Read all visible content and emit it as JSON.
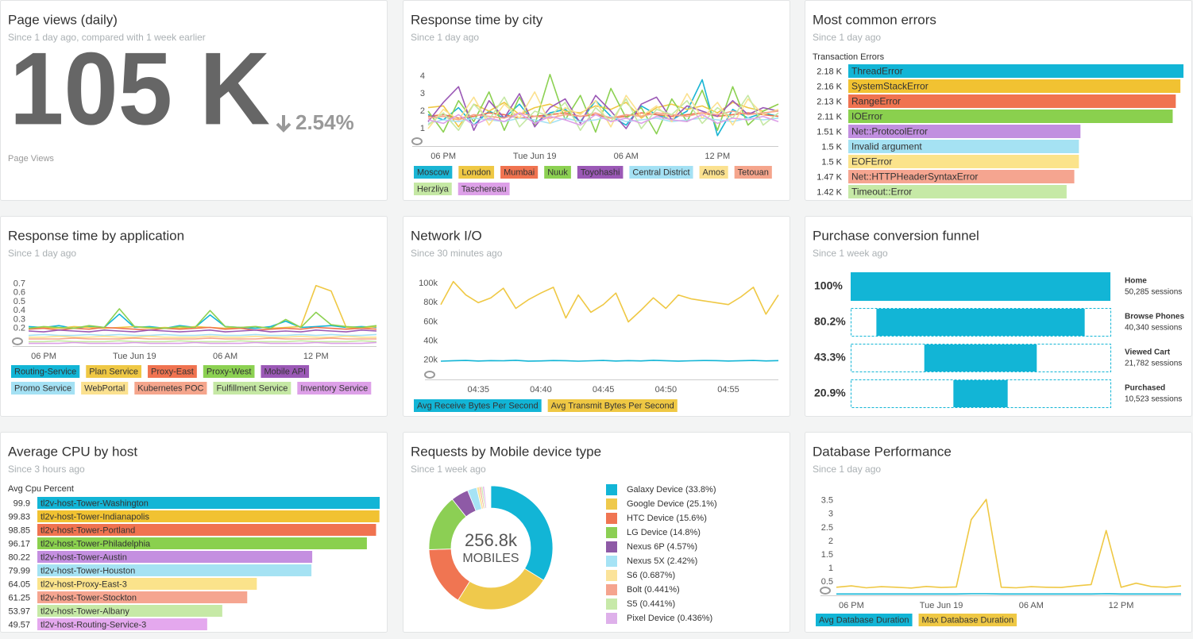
{
  "chart_data": [
    {
      "type": "billboard",
      "title": "Page views (daily)",
      "subtitle": "Since 1 day ago, compared with 1 week earlier",
      "value": "105 K",
      "change": "2.54%",
      "label": "Page Views"
    },
    {
      "type": "line",
      "title": "Response time by city",
      "subtitle": "Since 1 day ago",
      "categories": [
        null,
        "06 PM",
        null,
        null,
        null,
        null,
        null,
        "Tue Jun 19",
        null,
        null,
        null,
        null,
        null,
        "06 AM",
        null,
        null,
        null,
        null,
        null,
        "12 PM",
        null,
        null,
        null,
        null
      ],
      "ylim": [
        0,
        4.5
      ],
      "yticks": [
        1,
        2,
        3,
        4
      ],
      "grid": false,
      "series": [
        {
          "name": "Moscow",
          "color": "#1ab5d4",
          "values": [
            1.8,
            1.5,
            2.2,
            1.2,
            2.0,
            1.6,
            2.4,
            1.3,
            1.9,
            2.1,
            1.4,
            2.6,
            1.7,
            1.2,
            2.3,
            1.8,
            1.5,
            2.0,
            3.8,
            0.6,
            2.1,
            1.6,
            1.9,
            1.7
          ]
        },
        {
          "name": "London",
          "color": "#efc844",
          "values": [
            2.2,
            2.3,
            1.1,
            2.4,
            2.0,
            2.5,
            1.8,
            2.2,
            2.4,
            2.0,
            1.9,
            2.3,
            2.1,
            2.5,
            1.6,
            2.2,
            2.4,
            2.1,
            2.3,
            1.9,
            2.5,
            2.2,
            2.0,
            2.4
          ]
        },
        {
          "name": "Mumbai",
          "color": "#f07350",
          "values": [
            1.7,
            1.8,
            1.6,
            1.7,
            1.9,
            1.8,
            1.6,
            1.7,
            1.8,
            1.9,
            1.7,
            1.8,
            1.6,
            1.7,
            1.9,
            1.8,
            1.7,
            1.8,
            1.9,
            1.7,
            1.8,
            1.9,
            1.8,
            1.7
          ]
        },
        {
          "name": "Nuuk",
          "color": "#8cd152",
          "values": [
            2.0,
            0.8,
            2.6,
            1.4,
            3.1,
            0.9,
            2.8,
            1.2,
            4.1,
            1.5,
            2.9,
            0.8,
            3.3,
            1.6,
            2.2,
            0.7,
            2.7,
            1.4,
            3.2,
            0.9,
            3.4,
            1.2,
            2.0,
            2.4
          ]
        },
        {
          "name": "Toyohashi",
          "color": "#9b59b6",
          "values": [
            1.4,
            2.5,
            3.4,
            0.9,
            2.6,
            1.6,
            3.0,
            1.1,
            2.2,
            2.7,
            1.3,
            2.9,
            2.0,
            1.0,
            2.4,
            2.8,
            1.5,
            2.3,
            2.0,
            1.7,
            2.6,
            1.8,
            2.2,
            2.0
          ]
        },
        {
          "name": "Central District",
          "color": "#a4e1f4",
          "values": [
            1.3,
            1.5,
            1.4,
            1.6,
            1.5,
            1.4,
            1.6,
            1.5,
            1.3,
            1.6,
            1.4,
            1.5,
            1.7,
            1.4,
            1.5,
            1.6,
            1.4,
            1.5,
            1.6,
            1.5,
            1.4,
            1.6,
            1.5,
            1.6
          ]
        },
        {
          "name": "Amos",
          "color": "#fbe18f",
          "values": [
            1.0,
            2.1,
            1.5,
            2.8,
            1.2,
            2.4,
            1.6,
            3.1,
            1.3,
            2.2,
            1.8,
            2.6,
            1.1,
            2.9,
            1.7,
            2.3,
            1.4,
            3.0,
            1.6,
            2.5,
            1.2,
            2.7,
            1.8,
            2.1
          ]
        },
        {
          "name": "Tetouan",
          "color": "#f5a58c",
          "values": [
            1.6,
            1.7,
            1.5,
            1.8,
            1.7,
            1.6,
            1.9,
            1.7,
            1.6,
            1.8,
            1.7,
            1.9,
            1.6,
            1.8,
            1.7,
            1.9,
            1.8,
            1.7,
            1.9,
            1.8,
            2.0,
            1.8,
            1.9,
            2.0
          ]
        },
        {
          "name": "Herzliya",
          "color": "#c5e8a4",
          "values": [
            1.2,
            1.9,
            0.9,
            2.4,
            1.5,
            2.8,
            1.1,
            2.0,
            1.7,
            2.5,
            0.9,
            2.2,
            1.4,
            2.7,
            1.0,
            2.1,
            1.8,
            2.6,
            1.3,
            2.2,
            1.6,
            2.9,
            1.2,
            1.9
          ]
        },
        {
          "name": "Taschereau",
          "color": "#dda0e8",
          "values": [
            1.5,
            1.3,
            1.8,
            1.2,
            1.6,
            1.4,
            1.9,
            1.3,
            1.7,
            1.5,
            1.2,
            1.8,
            1.4,
            1.6,
            1.3,
            1.7,
            1.5,
            1.4,
            1.8,
            1.3,
            1.6,
            1.5,
            1.7,
            1.4
          ]
        }
      ]
    },
    {
      "type": "bar",
      "orientation": "horizontal",
      "title": "Most common errors",
      "subtitle": "Since 1 day ago",
      "axis_label": "Transaction Errors",
      "categories": [
        "ThreadError",
        "SystemStackError",
        "RangeError",
        "IOError",
        "Net::ProtocolError",
        "Invalid argument",
        "EOFError",
        "Net::HTTPHeaderSyntaxError",
        "Timeout::Error"
      ],
      "values": [
        2.18,
        2.16,
        2.13,
        2.11,
        1.51,
        1.5,
        1.5,
        1.47,
        1.42
      ],
      "value_labels": [
        "2.18 K",
        "2.16 K",
        "2.13 K",
        "2.11 K",
        "1.51 K",
        "1.5 K",
        "1.5 K",
        "1.47 K",
        "1.42 K"
      ],
      "colors": [
        "#12b5d6",
        "#f1c232",
        "#f07350",
        "#8ad04e",
        "#c18fe0",
        "#a5e2f3",
        "#fbe38b",
        "#f5a590",
        "#c6e9a6"
      ]
    },
    {
      "type": "line",
      "title": "Response time by application",
      "subtitle": "Since 1 day ago",
      "categories": [
        null,
        "06 PM",
        null,
        null,
        null,
        null,
        null,
        "Tue Jun 19",
        null,
        null,
        null,
        null,
        null,
        "06 AM",
        null,
        null,
        null,
        null,
        null,
        "12 PM",
        null,
        null,
        null,
        null
      ],
      "ylim": [
        0,
        0.75
      ],
      "yticks": [
        0.2,
        0.3,
        0.4,
        0.5,
        0.6,
        0.7
      ],
      "grid": false,
      "series": [
        {
          "name": "Routing-Service",
          "color": "#12b5d6",
          "values": [
            0.22,
            0.21,
            0.23,
            0.2,
            0.22,
            0.21,
            0.36,
            0.21,
            0.22,
            0.2,
            0.23,
            0.21,
            0.35,
            0.22,
            0.21,
            0.2,
            0.22,
            0.28,
            0.21,
            0.22,
            0.23,
            0.21,
            0.22,
            0.21
          ]
        },
        {
          "name": "Plan Service",
          "color": "#efc844",
          "values": [
            0.2,
            0.21,
            0.2,
            0.22,
            0.21,
            0.2,
            0.21,
            0.22,
            0.2,
            0.21,
            0.2,
            0.22,
            0.21,
            0.2,
            0.21,
            0.22,
            0.2,
            0.21,
            0.22,
            0.68,
            0.62,
            0.21,
            0.2,
            0.22
          ]
        },
        {
          "name": "Proxy-East",
          "color": "#f07350",
          "values": [
            0.19,
            0.2,
            0.18,
            0.2,
            0.19,
            0.21,
            0.2,
            0.19,
            0.18,
            0.2,
            0.19,
            0.2,
            0.21,
            0.19,
            0.2,
            0.18,
            0.19,
            0.2,
            0.19,
            0.21,
            0.2,
            0.19,
            0.2,
            0.19
          ]
        },
        {
          "name": "Proxy-West",
          "color": "#8cd152",
          "values": [
            0.2,
            0.22,
            0.21,
            0.2,
            0.23,
            0.21,
            0.42,
            0.22,
            0.21,
            0.2,
            0.22,
            0.21,
            0.4,
            0.22,
            0.21,
            0.22,
            0.2,
            0.3,
            0.21,
            0.38,
            0.24,
            0.22,
            0.21,
            0.23
          ]
        },
        {
          "name": "Mobile API",
          "color": "#9b59b6",
          "values": [
            0.17,
            0.16,
            0.18,
            0.17,
            0.16,
            0.18,
            0.17,
            0.16,
            0.18,
            0.17,
            0.16,
            0.17,
            0.18,
            0.16,
            0.17,
            0.18,
            0.16,
            0.17,
            0.16,
            0.18,
            0.17,
            0.16,
            0.18,
            0.17
          ]
        },
        {
          "name": "Promo Service",
          "color": "#a4e1f4",
          "values": [
            0.12,
            0.13,
            0.12,
            0.12,
            0.13,
            0.12,
            0.13,
            0.12,
            0.12,
            0.13,
            0.12,
            0.12,
            0.13,
            0.12,
            0.12,
            0.13,
            0.12,
            0.12,
            0.13,
            0.12,
            0.13,
            0.12,
            0.12,
            0.13
          ]
        },
        {
          "name": "WebPortal",
          "color": "#fbe18f",
          "values": [
            0.1,
            0.1,
            0.11,
            0.1,
            0.1,
            0.11,
            0.1,
            0.1,
            0.11,
            0.1,
            0.1,
            0.1,
            0.11,
            0.1,
            0.1,
            0.11,
            0.1,
            0.1,
            0.11,
            0.1,
            0.1,
            0.11,
            0.1,
            0.1
          ]
        },
        {
          "name": "Kubernetes POC",
          "color": "#f5a58c",
          "values": [
            0.08,
            0.08,
            0.08,
            0.09,
            0.08,
            0.08,
            0.08,
            0.09,
            0.08,
            0.08,
            0.08,
            0.08,
            0.09,
            0.08,
            0.08,
            0.08,
            0.09,
            0.08,
            0.08,
            0.08,
            0.09,
            0.08,
            0.08,
            0.08
          ]
        },
        {
          "name": "Fulfillment Service",
          "color": "#c5e8a4",
          "values": [
            0.05,
            0.05,
            0.06,
            0.05,
            0.05,
            0.05,
            0.06,
            0.05,
            0.05,
            0.05,
            0.06,
            0.05,
            0.05,
            0.05,
            0.06,
            0.05,
            0.05,
            0.05,
            0.06,
            0.05,
            0.05,
            0.05,
            0.06,
            0.05
          ]
        },
        {
          "name": "Inventory Service",
          "color": "#dda0e8",
          "values": [
            0.03,
            0.03,
            0.03,
            0.04,
            0.03,
            0.03,
            0.03,
            0.04,
            0.03,
            0.03,
            0.03,
            0.04,
            0.03,
            0.03,
            0.03,
            0.04,
            0.03,
            0.03,
            0.03,
            0.04,
            0.03,
            0.03,
            0.03,
            0.04
          ]
        }
      ]
    },
    {
      "type": "line",
      "title": "Network I/O",
      "subtitle": "Since 30 minutes ago",
      "categories": [
        null,
        null,
        null,
        "04:35",
        null,
        null,
        null,
        null,
        "04:40",
        null,
        null,
        null,
        null,
        "04:45",
        null,
        null,
        null,
        null,
        "04:50",
        null,
        null,
        null,
        null,
        "04:55",
        null,
        null,
        null,
        null
      ],
      "ylim": [
        0,
        110000
      ],
      "yticks": [
        {
          "value": 20000,
          "label": "20k"
        },
        {
          "value": 40000,
          "label": "40k"
        },
        {
          "value": 60000,
          "label": "60k"
        },
        {
          "value": 80000,
          "label": "80k"
        },
        {
          "value": 100000,
          "label": "100k"
        }
      ],
      "grid": false,
      "series": [
        {
          "name": "Avg Receive Bytes Per Second",
          "color": "#12b5d6",
          "values": [
            19000,
            19500,
            19800,
            19200,
            19600,
            19400,
            19900,
            19100,
            19300,
            19700,
            19500,
            19000,
            19400,
            19800,
            19200,
            19600,
            19300,
            19900,
            19500,
            19100,
            19400,
            19700,
            19600,
            19200,
            19500,
            19800,
            19300,
            19600
          ]
        },
        {
          "name": "Avg Transmit Bytes Per Second",
          "color": "#efc844",
          "values": [
            78000,
            102000,
            88000,
            80000,
            85000,
            95000,
            74000,
            83000,
            90000,
            96000,
            64000,
            88000,
            70000,
            78000,
            90000,
            60000,
            72000,
            85000,
            74000,
            88000,
            84000,
            82000,
            80000,
            78000,
            86000,
            96000,
            68000,
            88000
          ]
        }
      ]
    },
    {
      "type": "funnel",
      "title": "Purchase conversion funnel",
      "subtitle": "Since 1 week ago",
      "categories": [
        "Home",
        "Browse Phones",
        "Viewed Cart",
        "Purchased"
      ],
      "values": [
        100,
        80.2,
        43.3,
        20.9
      ],
      "value_labels": [
        "100%",
        "80.2%",
        "43.3%",
        "20.9%"
      ],
      "session_labels": [
        "50,285 sessions",
        "40,340 sessions",
        "21,782 sessions",
        "10,523 sessions"
      ],
      "color": "#12b5d6"
    },
    {
      "type": "bar",
      "orientation": "horizontal",
      "title": "Average CPU by host",
      "subtitle": "Since 3 hours ago",
      "axis_label": "Avg Cpu Percent",
      "categories": [
        "tl2v-host-Tower-Washington",
        "tl2v-host-Tower-Indianapolis",
        "tl2v-host-Tower-Portland",
        "tl2v-host-Tower-Philadelphia",
        "tl2v-host-Tower-Austin",
        "tl2v-host-Tower-Houston",
        "tl2v-host-Proxy-East-3",
        "tl2v-host-Tower-Stockton",
        "tl2v-host-Tower-Albany",
        "tl2v-host-Routing-Service-3"
      ],
      "values": [
        99.9,
        99.83,
        98.85,
        96.17,
        80.22,
        79.99,
        64.05,
        61.25,
        53.97,
        49.57
      ],
      "colors": [
        "#12b5d6",
        "#f1c232",
        "#f07350",
        "#8ad04e",
        "#c48fe0",
        "#a5e2f3",
        "#fbe38b",
        "#f5a590",
        "#c6e9a6",
        "#e4a8ee"
      ]
    },
    {
      "type": "donut",
      "title": "Requests by Mobile device type",
      "subtitle": "Since 1 week ago",
      "total": "256.8k",
      "total_label": "MOBILES",
      "categories": [
        "Galaxy Device (33.8%)",
        "Google Device (25.1%)",
        "HTC Device (15.6%)",
        "LG Device (14.8%)",
        "Nexus 6P (4.57%)",
        "Nexus 5X (2.42%)",
        "S6 (0.687%)",
        "Bolt (0.441%)",
        "S5 (0.441%)",
        "Pixel Device (0.436%)"
      ],
      "values": [
        33.8,
        25.1,
        15.6,
        14.8,
        4.57,
        2.42,
        0.687,
        0.441,
        0.441,
        0.436
      ],
      "colors": [
        "#12b5d6",
        "#efc94c",
        "#f07552",
        "#8ccf54",
        "#8e5aa6",
        "#a6e3f5",
        "#fbe39a",
        "#f5a48e",
        "#c7e9a9",
        "#deb0ea"
      ]
    },
    {
      "type": "line",
      "title": "Database Performance",
      "subtitle": "Since 1 day ago",
      "categories": [
        null,
        "06 PM",
        null,
        null,
        null,
        null,
        null,
        "Tue Jun 19",
        null,
        null,
        null,
        null,
        null,
        "06 AM",
        null,
        null,
        null,
        null,
        null,
        "12 PM",
        null,
        null,
        null,
        null
      ],
      "ylim": [
        0,
        3.7
      ],
      "yticks": [
        0.5,
        1,
        1.5,
        2,
        2.5,
        3,
        3.5
      ],
      "grid": false,
      "series": [
        {
          "name": "Avg Database Duration",
          "color": "#12b5d6",
          "values": [
            0.05,
            0.05,
            0.05,
            0.05,
            0.05,
            0.05,
            0.05,
            0.05,
            0.05,
            0.06,
            0.06,
            0.05,
            0.05,
            0.05,
            0.05,
            0.05,
            0.05,
            0.05,
            0.06,
            0.05,
            0.05,
            0.05,
            0.05,
            0.05
          ]
        },
        {
          "name": "Max Database Duration",
          "color": "#efc844",
          "values": [
            0.3,
            0.35,
            0.28,
            0.32,
            0.3,
            0.27,
            0.33,
            0.29,
            0.31,
            2.8,
            3.55,
            0.3,
            0.28,
            0.32,
            0.3,
            0.29,
            0.35,
            0.4,
            2.4,
            0.3,
            0.45,
            0.33,
            0.3,
            0.35
          ]
        }
      ]
    }
  ]
}
